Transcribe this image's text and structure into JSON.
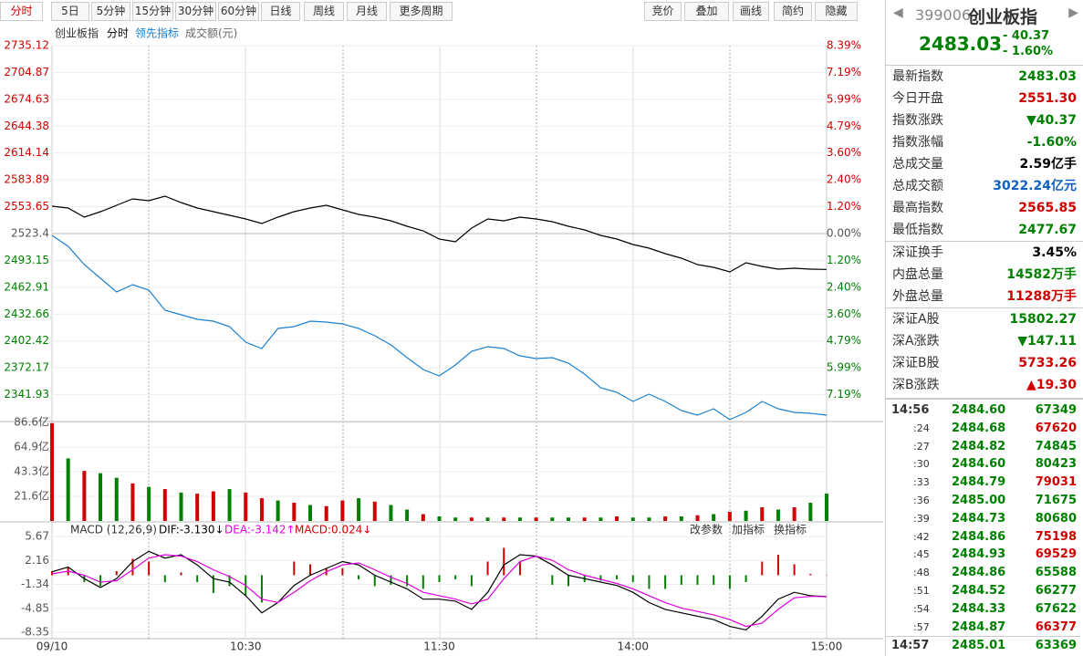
{
  "toolbar": {
    "periods": [
      "分时",
      "5日",
      "5分钟",
      "15分钟",
      "30分钟",
      "60分钟",
      "日线",
      "周线",
      "月线",
      "更多周期"
    ],
    "tools": [
      "竞价",
      "叠加",
      "画线",
      "简约",
      "隐藏"
    ]
  },
  "legend": [
    "创业板指",
    "分时",
    "领先指标",
    "成交额(元)"
  ],
  "price_chart": {
    "ylim": [
      2311.68,
      2735.12
    ],
    "base": 2523.4,
    "yticks": [
      2735.12,
      2704.87,
      2674.63,
      2644.38,
      2614.14,
      2583.89,
      2553.65,
      2523.4,
      2493.15,
      2462.91,
      2432.66,
      2402.42,
      2372.17,
      2341.93
    ],
    "y2lim": [
      -8.39,
      8.39
    ],
    "y2ticks": [
      {
        "value": 8.39,
        "label": "8.39%"
      },
      {
        "value": 7.19,
        "label": "7.19%"
      },
      {
        "value": 5.99,
        "label": "5.99%"
      },
      {
        "value": 4.79,
        "label": "4.79%"
      },
      {
        "value": 3.6,
        "label": "3.60%"
      },
      {
        "value": 2.4,
        "label": "2.40%"
      },
      {
        "value": 1.2,
        "label": "1.20%"
      },
      {
        "value": 0,
        "label": "0.00%"
      },
      {
        "value": -1.2,
        "label": "1.20%"
      },
      {
        "value": -2.4,
        "label": "2.40%"
      },
      {
        "value": -3.6,
        "label": "3.60%"
      },
      {
        "value": -4.79,
        "label": "4.79%"
      },
      {
        "value": -5.99,
        "label": "5.99%"
      },
      {
        "value": -7.19,
        "label": "7.19%"
      }
    ],
    "series": [
      {
        "name": "创业板指",
        "color": "#000000",
        "values": [
          2554.23,
          2552.18,
          2541.9,
          2548.06,
          2555.26,
          2562.45,
          2560.4,
          2565.54,
          2558.34,
          2552.18,
          2548.06,
          2543.95,
          2539.84,
          2534.7,
          2541.9,
          2548.06,
          2552.18,
          2555.26,
          2550.12,
          2544.98,
          2541.9,
          2537.79,
          2531.62,
          2526.48,
          2517.23,
          2514.15,
          2529.57,
          2539.84,
          2537.79,
          2541.9,
          2539.84,
          2536.76,
          2531.62,
          2527.51,
          2521.34,
          2517.23,
          2511.07,
          2506.96,
          2500.79,
          2495.65,
          2488.46,
          2485.37,
          2480.24,
          2490.51,
          2486.4,
          2483.32,
          2484.35,
          2483.32,
          2483.03
        ]
      },
      {
        "name": "领先指标",
        "color": "#1a7fd0",
        "values": [
          2521.34,
          2509.01,
          2488.46,
          2473.04,
          2457.63,
          2465.85,
          2459.68,
          2437.07,
          2431.93,
          2426.8,
          2424.74,
          2418.57,
          2401.1,
          2393.91,
          2416.52,
          2418.57,
          2424.74,
          2423.71,
          2421.66,
          2416.52,
          2408.3,
          2398.02,
          2383.63,
          2370.27,
          2363.08,
          2375.41,
          2390.83,
          2395.97,
          2393.91,
          2385.69,
          2382.61,
          2383.63,
          2377.47,
          2365.13,
          2349.72,
          2344.58,
          2334.3,
          2342.52,
          2334.3,
          2324.03,
          2318.89,
          2326.08,
          2313.75,
          2321.97,
          2334.3,
          2326.08,
          2321.97,
          2320.94,
          2318.89
        ]
      }
    ]
  },
  "volume_chart": {
    "ylim": [
      0,
      86.6
    ],
    "yticks": [
      {
        "value": 86.6,
        "label": "86.6亿"
      },
      {
        "value": 64.9,
        "label": "64.9亿"
      },
      {
        "value": 43.3,
        "label": "43.3亿"
      },
      {
        "value": 21.6,
        "label": "21.6亿"
      }
    ],
    "values": [
      86,
      55,
      44,
      42,
      38,
      33,
      30,
      28,
      25,
      24,
      26,
      28,
      25,
      20,
      18,
      16,
      14,
      13,
      18,
      20,
      17,
      14,
      10,
      6,
      4,
      3,
      3,
      3,
      3,
      3,
      3,
      3,
      3,
      3,
      3,
      4,
      3,
      3,
      4,
      4,
      5,
      6,
      8,
      9,
      12,
      10,
      12,
      16,
      24
    ],
    "colors": [
      "#d00000",
      "#008000",
      "#d00000",
      "#008000",
      "#008000",
      "#d00000",
      "#008000",
      "#d00000",
      "#008000",
      "#d00000",
      "#d00000",
      "#008000",
      "#d00000",
      "#d00000",
      "#008000",
      "#d00000",
      "#008000",
      "#d00000",
      "#d00000",
      "#008000",
      "#d00000",
      "#008000",
      "#008000",
      "#d00000",
      "#008000",
      "#008000",
      "#d00000",
      "#008000",
      "#d00000",
      "#008000",
      "#d00000",
      "#008000",
      "#008000",
      "#d00000",
      "#008000",
      "#d00000",
      "#008000",
      "#008000",
      "#d00000",
      "#008000",
      "#d00000",
      "#008000",
      "#d00000",
      "#008000",
      "#d00000",
      "#008000",
      "#d00000",
      "#008000",
      "#008000"
    ]
  },
  "macd_chart": {
    "title": "MACD (12,26,9)",
    "dif": "DIF:-3.130↓",
    "dea": "DEA:-3.142↑",
    "macd": "MACD:0.024↓",
    "actions": [
      "改参数",
      "加指标",
      "换指标"
    ],
    "ylim": [
      -8.35,
      5.67
    ],
    "yticks": [
      5.67,
      2.16,
      -1.34,
      -4.85,
      -8.35
    ],
    "hist": [
      0.6,
      1.2,
      -1.0,
      -1.6,
      0.6,
      2.4,
      2.0,
      -1.0,
      0.4,
      -1.0,
      -2.6,
      -1.6,
      -3.0,
      -4.0,
      0,
      2.0,
      1.6,
      1.0,
      1.0,
      -0.6,
      -1.6,
      -1.4,
      -1.6,
      -2.0,
      -1.0,
      -0.6,
      -1.6,
      2.0,
      4.0,
      2.0,
      0,
      -1.4,
      -1.6,
      -1.0,
      -0.8,
      -0.6,
      -1.0,
      -2.0,
      -2.0,
      -1.4,
      -1.4,
      -1.4,
      -2.0,
      -1.0,
      2.0,
      3.0,
      1.6,
      0.2,
      0.04
    ],
    "series": [
      {
        "name": "DIF",
        "color": "#000000",
        "values": [
          0.5,
          1.2,
          -0.5,
          -1.8,
          -0.5,
          2.0,
          3.5,
          2.5,
          3.0,
          1.5,
          -0.5,
          -1.0,
          -3.0,
          -5.5,
          -4.0,
          -1.5,
          0.0,
          1.0,
          2.0,
          1.5,
          0.0,
          -1.0,
          -2.0,
          -3.5,
          -3.5,
          -3.8,
          -5.0,
          -2.5,
          1.5,
          3.0,
          2.8,
          1.5,
          0.0,
          -0.5,
          -1.0,
          -1.5,
          -2.5,
          -4.0,
          -5.0,
          -5.5,
          -6.0,
          -6.5,
          -7.5,
          -8.0,
          -6.0,
          -3.5,
          -2.5,
          -3.0,
          -3.13
        ]
      },
      {
        "name": "DEA",
        "color": "#e000e0",
        "values": [
          0.2,
          0.6,
          0.0,
          -1.0,
          -0.8,
          0.8,
          2.5,
          3.0,
          2.8,
          2.0,
          0.8,
          -0.2,
          -1.5,
          -3.5,
          -4.0,
          -2.5,
          -0.8,
          0.5,
          1.5,
          1.8,
          0.8,
          -0.3,
          -1.2,
          -2.5,
          -3.0,
          -3.5,
          -4.2,
          -3.5,
          -0.5,
          2.0,
          2.8,
          2.2,
          0.8,
          0.0,
          -0.6,
          -1.2,
          -2.0,
          -3.0,
          -4.0,
          -4.8,
          -5.3,
          -5.8,
          -6.5,
          -7.5,
          -7.0,
          -5.0,
          -3.3,
          -3.1,
          -3.14
        ]
      }
    ]
  },
  "xticks": [
    "09/10",
    "10:30",
    "11:30",
    "14:00",
    "15:00"
  ],
  "quote": {
    "code": "399006",
    "name": "创业板指",
    "price": "2483.03",
    "change": "- 40.37",
    "pct": "- 1.60%",
    "groups": [
      [
        {
          "label": "最新指数",
          "value": "2483.03",
          "color": "#008000"
        },
        {
          "label": "今日开盘",
          "value": "2551.30",
          "color": "#d00000"
        },
        {
          "label": "指数涨跌",
          "value": "▼40.37",
          "color": "#008000"
        },
        {
          "label": "指数涨幅",
          "value": "-1.60%",
          "color": "#008000"
        },
        {
          "label": "总成交量",
          "value": "2.59亿手",
          "color": "#000000"
        },
        {
          "label": "总成交额",
          "value": "3022.24亿元",
          "color": "#1060c0"
        },
        {
          "label": "最高指数",
          "value": "2565.85",
          "color": "#d00000"
        },
        {
          "label": "最低指数",
          "value": "2477.67",
          "color": "#008000"
        }
      ],
      [
        {
          "label": "深证换手",
          "value": "3.45%",
          "color": "#000000"
        },
        {
          "label": "内盘总量",
          "value": "14582万手",
          "color": "#008000"
        },
        {
          "label": "外盘总量",
          "value": "11288万手",
          "color": "#d00000"
        }
      ],
      [
        {
          "label": "深证A股",
          "value": "15802.27",
          "color": "#008000"
        },
        {
          "label": "深A涨跌",
          "value": "▼147.11",
          "color": "#008000"
        },
        {
          "label": "深证B股",
          "value": "5733.26",
          "color": "#d00000"
        },
        {
          "label": "深B涨跌",
          "value": "▲19.30",
          "color": "#d00000"
        }
      ]
    ],
    "trades": [
      {
        "time": "14:56",
        "price": "2484.60",
        "vol": "67349",
        "color": "#008000"
      },
      {
        "time": ":24",
        "price": "2484.68",
        "vol": "67620",
        "color": "#d00000"
      },
      {
        "time": ":27",
        "price": "2484.82",
        "vol": "74845",
        "color": "#008000"
      },
      {
        "time": ":30",
        "price": "2484.60",
        "vol": "80423",
        "color": "#008000"
      },
      {
        "time": ":33",
        "price": "2484.79",
        "vol": "79031",
        "color": "#d00000"
      },
      {
        "time": ":36",
        "price": "2485.00",
        "vol": "71675",
        "color": "#008000"
      },
      {
        "time": ":39",
        "price": "2484.73",
        "vol": "80680",
        "color": "#008000"
      },
      {
        "time": ":42",
        "price": "2484.86",
        "vol": "75198",
        "color": "#d00000"
      },
      {
        "time": ":45",
        "price": "2484.93",
        "vol": "69529",
        "color": "#d00000"
      },
      {
        "time": ":48",
        "price": "2484.86",
        "vol": "65588",
        "color": "#008000"
      },
      {
        "time": ":51",
        "price": "2484.52",
        "vol": "66277",
        "color": "#008000"
      },
      {
        "time": ":54",
        "price": "2484.33",
        "vol": "67622",
        "color": "#008000"
      },
      {
        "time": ":57",
        "price": "2484.87",
        "vol": "66377",
        "color": "#d00000"
      },
      {
        "time": "14:57",
        "price": "2485.01",
        "vol": "63369",
        "color": "#008000"
      }
    ]
  }
}
